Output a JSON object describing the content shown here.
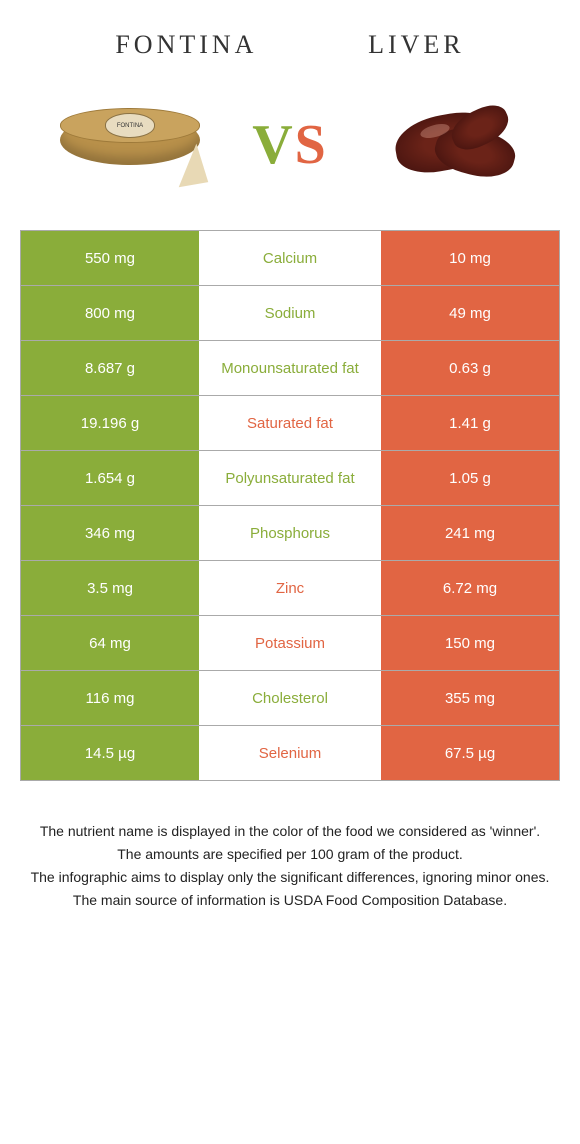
{
  "colors": {
    "left": "#8aad3a",
    "right": "#e16543",
    "border": "#aaaaaa",
    "bg": "#ffffff"
  },
  "foodLeft": "Fontina",
  "foodRight": "Liver",
  "vs": {
    "v": "V",
    "s": "S"
  },
  "cheeseLabel": "FONTINA",
  "rows": [
    {
      "left": "550 mg",
      "name": "Calcium",
      "right": "10 mg",
      "winner": "left"
    },
    {
      "left": "800 mg",
      "name": "Sodium",
      "right": "49 mg",
      "winner": "left"
    },
    {
      "left": "8.687 g",
      "name": "Monounsaturated fat",
      "right": "0.63 g",
      "winner": "left"
    },
    {
      "left": "19.196 g",
      "name": "Saturated fat",
      "right": "1.41 g",
      "winner": "right"
    },
    {
      "left": "1.654 g",
      "name": "Polyunsaturated fat",
      "right": "1.05 g",
      "winner": "left"
    },
    {
      "left": "346 mg",
      "name": "Phosphorus",
      "right": "241 mg",
      "winner": "left"
    },
    {
      "left": "3.5 mg",
      "name": "Zinc",
      "right": "6.72 mg",
      "winner": "right"
    },
    {
      "left": "64 mg",
      "name": "Potassium",
      "right": "150 mg",
      "winner": "right"
    },
    {
      "left": "116 mg",
      "name": "Cholesterol",
      "right": "355 mg",
      "winner": "left"
    },
    {
      "left": "14.5 µg",
      "name": "Selenium",
      "right": "67.5 µg",
      "winner": "right"
    }
  ],
  "footer": [
    "The nutrient name is displayed in the color of the food we considered as 'winner'.",
    "The amounts are specified per 100 gram of the product.",
    "The infographic aims to display only the significant differences, ignoring minor ones.",
    "The main source of information is USDA Food Composition Database."
  ]
}
